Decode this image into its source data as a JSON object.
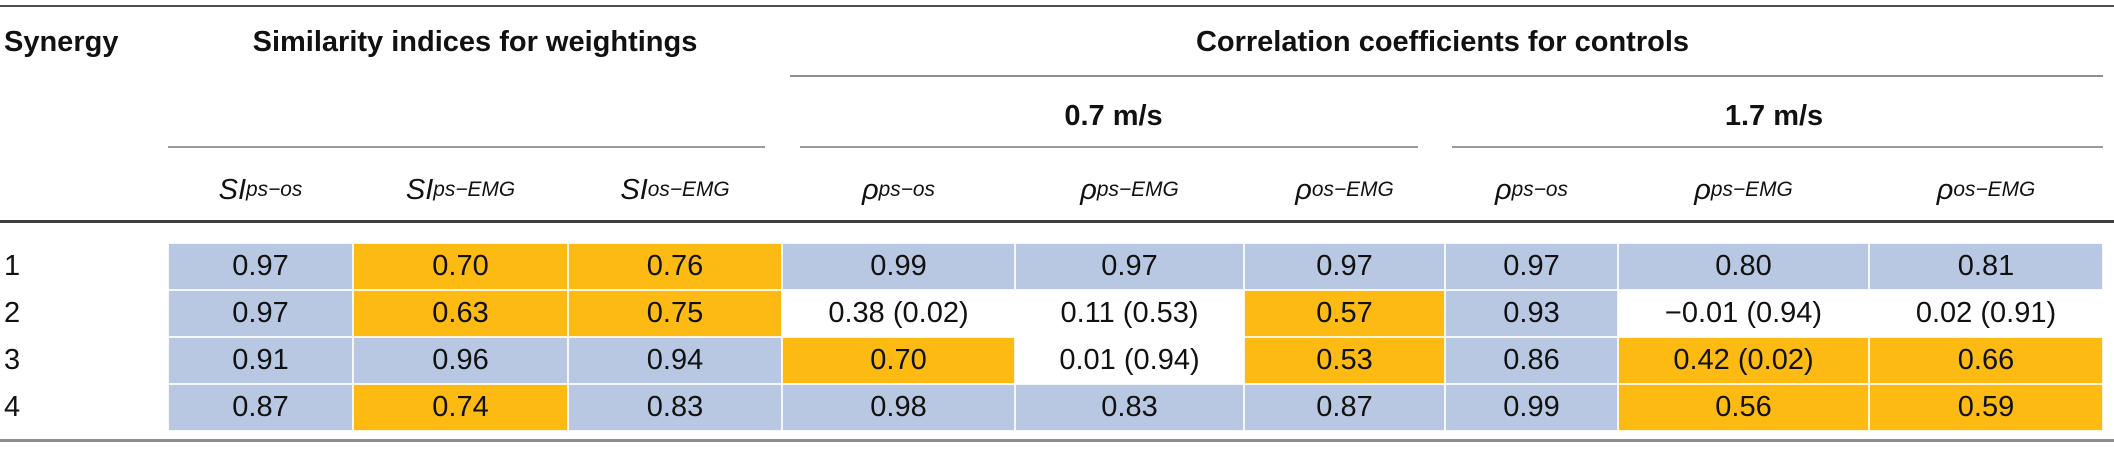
{
  "table": {
    "row_header": "Synergy",
    "groups": {
      "similarity": "Similarity indices for weightings",
      "correlation": "Correlation coefficients for controls"
    },
    "speeds": [
      "0.7 m/s",
      "1.7 m/s"
    ],
    "columns": [
      {
        "base": "SI",
        "sub": "ps−os"
      },
      {
        "base": "SI",
        "sub": "ps−EMG"
      },
      {
        "base": "SI",
        "sub": "os−EMG"
      },
      {
        "base": "ρ",
        "sub": "ps−os"
      },
      {
        "base": "ρ",
        "sub": "ps−EMG"
      },
      {
        "base": "ρ",
        "sub": "os−EMG"
      },
      {
        "base": "ρ",
        "sub": "ps−os"
      },
      {
        "base": "ρ",
        "sub": "ps−EMG"
      },
      {
        "base": "ρ",
        "sub": "os−EMG"
      }
    ],
    "colors": {
      "blue": "#b9c8e2",
      "orange": "#fcba12",
      "white": "#ffffff"
    },
    "rows": [
      {
        "label": "1",
        "cells": [
          {
            "value": "0.97",
            "bg": "blue"
          },
          {
            "value": "0.70",
            "bg": "orange"
          },
          {
            "value": "0.76",
            "bg": "orange"
          },
          {
            "value": "0.99",
            "bg": "blue"
          },
          {
            "value": "0.97",
            "bg": "blue"
          },
          {
            "value": "0.97",
            "bg": "blue"
          },
          {
            "value": "0.97",
            "bg": "blue"
          },
          {
            "value": "0.80",
            "bg": "blue"
          },
          {
            "value": "0.81",
            "bg": "blue"
          }
        ]
      },
      {
        "label": "2",
        "cells": [
          {
            "value": "0.97",
            "bg": "blue"
          },
          {
            "value": "0.63",
            "bg": "orange"
          },
          {
            "value": "0.75",
            "bg": "orange"
          },
          {
            "value": "0.38 (0.02)",
            "bg": "white"
          },
          {
            "value": "0.11 (0.53)",
            "bg": "white"
          },
          {
            "value": "0.57",
            "bg": "orange"
          },
          {
            "value": "0.93",
            "bg": "blue"
          },
          {
            "value": "−0.01 (0.94)",
            "bg": "white"
          },
          {
            "value": "0.02 (0.91)",
            "bg": "white"
          }
        ]
      },
      {
        "label": "3",
        "cells": [
          {
            "value": "0.91",
            "bg": "blue"
          },
          {
            "value": "0.96",
            "bg": "blue"
          },
          {
            "value": "0.94",
            "bg": "blue"
          },
          {
            "value": "0.70",
            "bg": "orange"
          },
          {
            "value": "0.01 (0.94)",
            "bg": "white"
          },
          {
            "value": "0.53",
            "bg": "orange"
          },
          {
            "value": "0.86",
            "bg": "blue"
          },
          {
            "value": "0.42 (0.02)",
            "bg": "orange"
          },
          {
            "value": "0.66",
            "bg": "orange"
          }
        ]
      },
      {
        "label": "4",
        "cells": [
          {
            "value": "0.87",
            "bg": "blue"
          },
          {
            "value": "0.74",
            "bg": "orange"
          },
          {
            "value": "0.83",
            "bg": "blue"
          },
          {
            "value": "0.98",
            "bg": "blue"
          },
          {
            "value": "0.83",
            "bg": "blue"
          },
          {
            "value": "0.87",
            "bg": "blue"
          },
          {
            "value": "0.99",
            "bg": "blue"
          },
          {
            "value": "0.56",
            "bg": "orange"
          },
          {
            "value": "0.59",
            "bg": "orange"
          }
        ]
      }
    ]
  }
}
